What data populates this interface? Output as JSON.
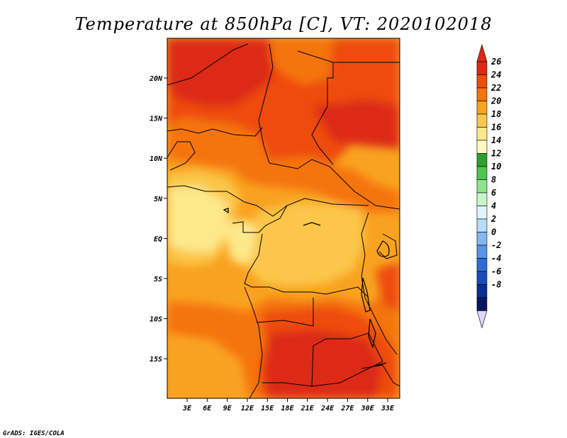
{
  "title": "Temperature at 850hPa [C], VT: 2020102018",
  "credit": "GrADS: IGES/COLA",
  "map": {
    "lat_ticks": [
      "20N",
      "15N",
      "10N",
      "5N",
      "EQ",
      "5S",
      "10S",
      "15S"
    ],
    "lon_ticks": [
      "3E",
      "6E",
      "9E",
      "12E",
      "15E",
      "18E",
      "21E",
      "24E",
      "27E",
      "30E",
      "33E"
    ]
  },
  "colorbar": {
    "labels": [
      "26",
      "24",
      "22",
      "20",
      "18",
      "16",
      "14",
      "12",
      "10",
      "8",
      "6",
      "4",
      "2",
      "0",
      "-2",
      "-4",
      "-6",
      "-8"
    ],
    "colors": [
      "#dc2a12",
      "#ee4c10",
      "#f5740e",
      "#f9a220",
      "#fbc64a",
      "#fde88a",
      "#fff8c2",
      "#2ea02e",
      "#4fc64f",
      "#8ee38e",
      "#c8f5c8",
      "#e0f4fb",
      "#b8dcf8",
      "#82b6f0",
      "#5696e4",
      "#2e6cd4",
      "#1a4cb8",
      "#0c2c96",
      "#081860"
    ],
    "over_color": "#dc2a12",
    "under_color": "#ddd8f8"
  }
}
